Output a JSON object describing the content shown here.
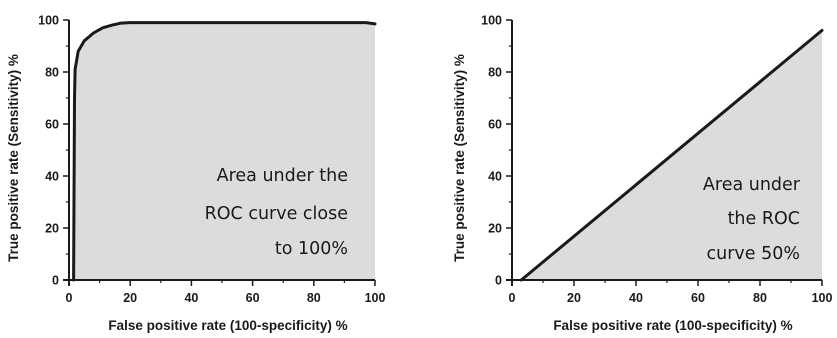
{
  "colors": {
    "fill": "#dcdcdc",
    "line": "#1a1a1a",
    "background": "#ffffff"
  },
  "chart_data": [
    {
      "type": "area",
      "title": "",
      "xlabel": "False positive rate (100-specificity)",
      "xunit": "%",
      "ylabel": "True positive rate (Sensitivity)",
      "yunit": "%",
      "xlim": [
        0,
        100
      ],
      "ylim": [
        0,
        100
      ],
      "xticks": [
        "0",
        "20",
        "40",
        "60",
        "80",
        "100"
      ],
      "yticks": [
        "0",
        "20",
        "40",
        "60",
        "80",
        "100"
      ],
      "grid": false,
      "series": [
        {
          "x": [
            1.5,
            1.8,
            2,
            3,
            5,
            8,
            11,
            14,
            17,
            20,
            40,
            60,
            80,
            97,
            100
          ],
          "y": [
            0,
            70,
            81,
            88,
            92,
            95,
            97,
            98,
            98.8,
            99,
            99,
            99,
            99,
            99,
            98.5
          ]
        }
      ],
      "annotation": [
        "Area under the",
        "ROC curve close",
        "to 100%"
      ]
    },
    {
      "type": "area",
      "title": "",
      "xlabel": "False positive rate (100-specificity)",
      "xunit": "%",
      "ylabel": "True positive rate (Sensitivity)",
      "yunit": "%",
      "xlim": [
        0,
        100
      ],
      "ylim": [
        0,
        100
      ],
      "xticks": [
        "0",
        "20",
        "40",
        "60",
        "80",
        "100"
      ],
      "yticks": [
        "0",
        "20",
        "40",
        "60",
        "80",
        "100"
      ],
      "grid": false,
      "series": [
        {
          "x": [
            3,
            100
          ],
          "y": [
            0,
            96
          ]
        }
      ],
      "annotation": [
        "Area under",
        "the ROC",
        "curve 50%"
      ]
    }
  ]
}
